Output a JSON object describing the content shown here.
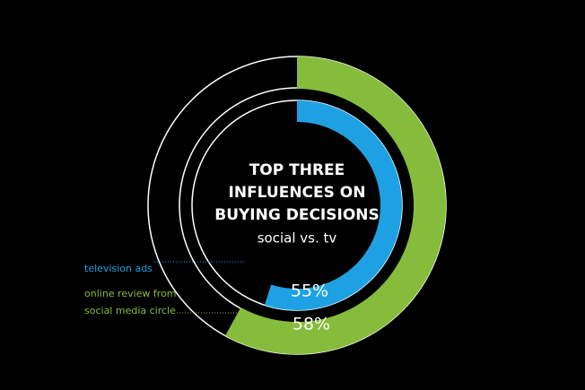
{
  "chart_data": {
    "type": "radial-bar",
    "title": [
      "TOP THREE",
      "INFLUENCES ON",
      "BUYING  DECISIONS"
    ],
    "subtitle": "social vs. tv",
    "ylim": [
      0,
      100
    ],
    "series": [
      {
        "name": "television ads",
        "color": "#1ea1e3",
        "values": [
          55
        ],
        "value_labels": [
          "55%"
        ]
      },
      {
        "name": "online review from social media circle",
        "color": "#86bc3b",
        "values": [
          58
        ],
        "value_labels": [
          "58%"
        ]
      }
    ]
  }
}
